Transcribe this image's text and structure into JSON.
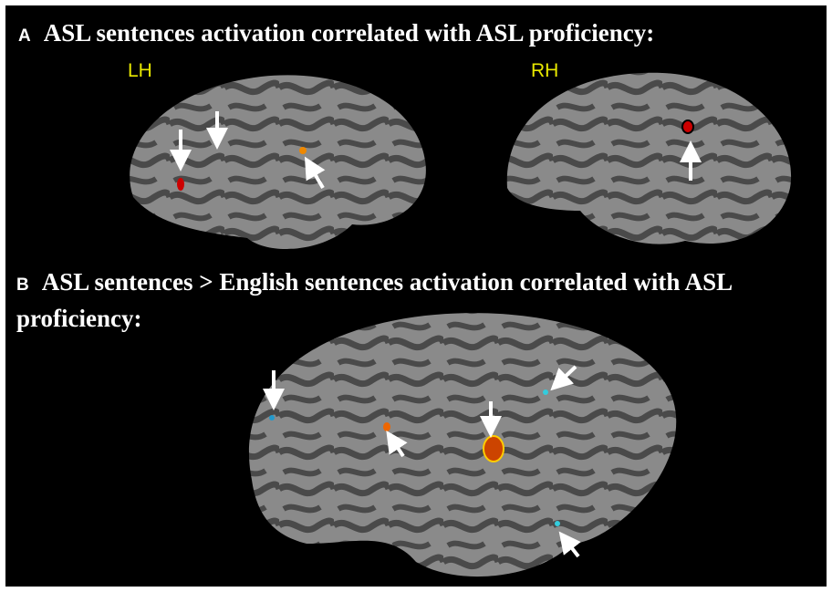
{
  "panel_a": {
    "label": "A",
    "title": "ASL sentences activation correlated with ASL proficiency:",
    "left_label": "LH",
    "right_label": "RH"
  },
  "panel_b": {
    "label": "B",
    "title": "ASL sentences > English sentences activation correlated with ASL proficiency:"
  }
}
